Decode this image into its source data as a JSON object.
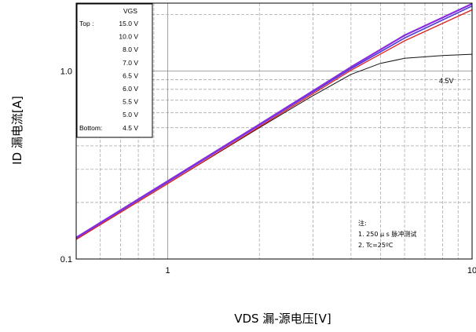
{
  "chart_data": {
    "type": "line",
    "x_scale": "log",
    "y_scale": "log",
    "xlim": [
      0.5,
      10
    ],
    "ylim": [
      0.1,
      2.3
    ],
    "grid": true,
    "xlabel": "VDS 漏-源电压[V]",
    "ylabel": "ID 漏电流[A]",
    "x_ticks": [
      {
        "value": 1,
        "label": "1"
      },
      {
        "value": 10,
        "label": "10"
      }
    ],
    "y_ticks": [
      {
        "value": 0.1,
        "label": "0.1"
      },
      {
        "value": 1,
        "label": "1.0"
      }
    ],
    "legend": {
      "title": "VGS",
      "placement": "top-left",
      "entries": [
        {
          "prefix": "Top :",
          "value": "15.0 V"
        },
        {
          "prefix": "",
          "value": "10.0 V"
        },
        {
          "prefix": "",
          "value": "8.0 V"
        },
        {
          "prefix": "",
          "value": "7.0 V"
        },
        {
          "prefix": "",
          "value": "6.5 V"
        },
        {
          "prefix": "",
          "value": "6.0 V"
        },
        {
          "prefix": "",
          "value": "5.5 V"
        },
        {
          "prefix": "",
          "value": "5.0 V"
        },
        {
          "prefix": "Bottom:",
          "value": "4.5 V"
        }
      ]
    },
    "notes": [
      "注:",
      "1. 250 μ s 脉冲测试",
      "2. Tc=25ºC"
    ],
    "series": [
      {
        "color": "#8a2be2",
        "width": 2.2,
        "x": [
          0.5,
          1,
          2,
          4,
          6,
          10
        ],
        "y": [
          0.13,
          0.26,
          0.52,
          1.05,
          1.55,
          2.28
        ]
      },
      {
        "color": "#4b3ad6",
        "width": 1.6,
        "x": [
          0.5,
          1,
          2,
          4,
          6,
          10
        ],
        "y": [
          0.129,
          0.257,
          0.515,
          1.03,
          1.5,
          2.22
        ]
      },
      {
        "color": "#e02020",
        "width": 1.3,
        "x": [
          0.5,
          1,
          2,
          4,
          6,
          10
        ],
        "y": [
          0.127,
          0.252,
          0.505,
          1.01,
          1.45,
          2.12
        ]
      },
      {
        "label": "4.5V",
        "color": "#111111",
        "width": 1.0,
        "x": [
          0.5,
          1,
          2,
          3,
          4,
          5,
          6,
          8,
          10
        ],
        "y": [
          0.127,
          0.252,
          0.5,
          0.74,
          0.96,
          1.1,
          1.17,
          1.21,
          1.23
        ]
      }
    ]
  }
}
